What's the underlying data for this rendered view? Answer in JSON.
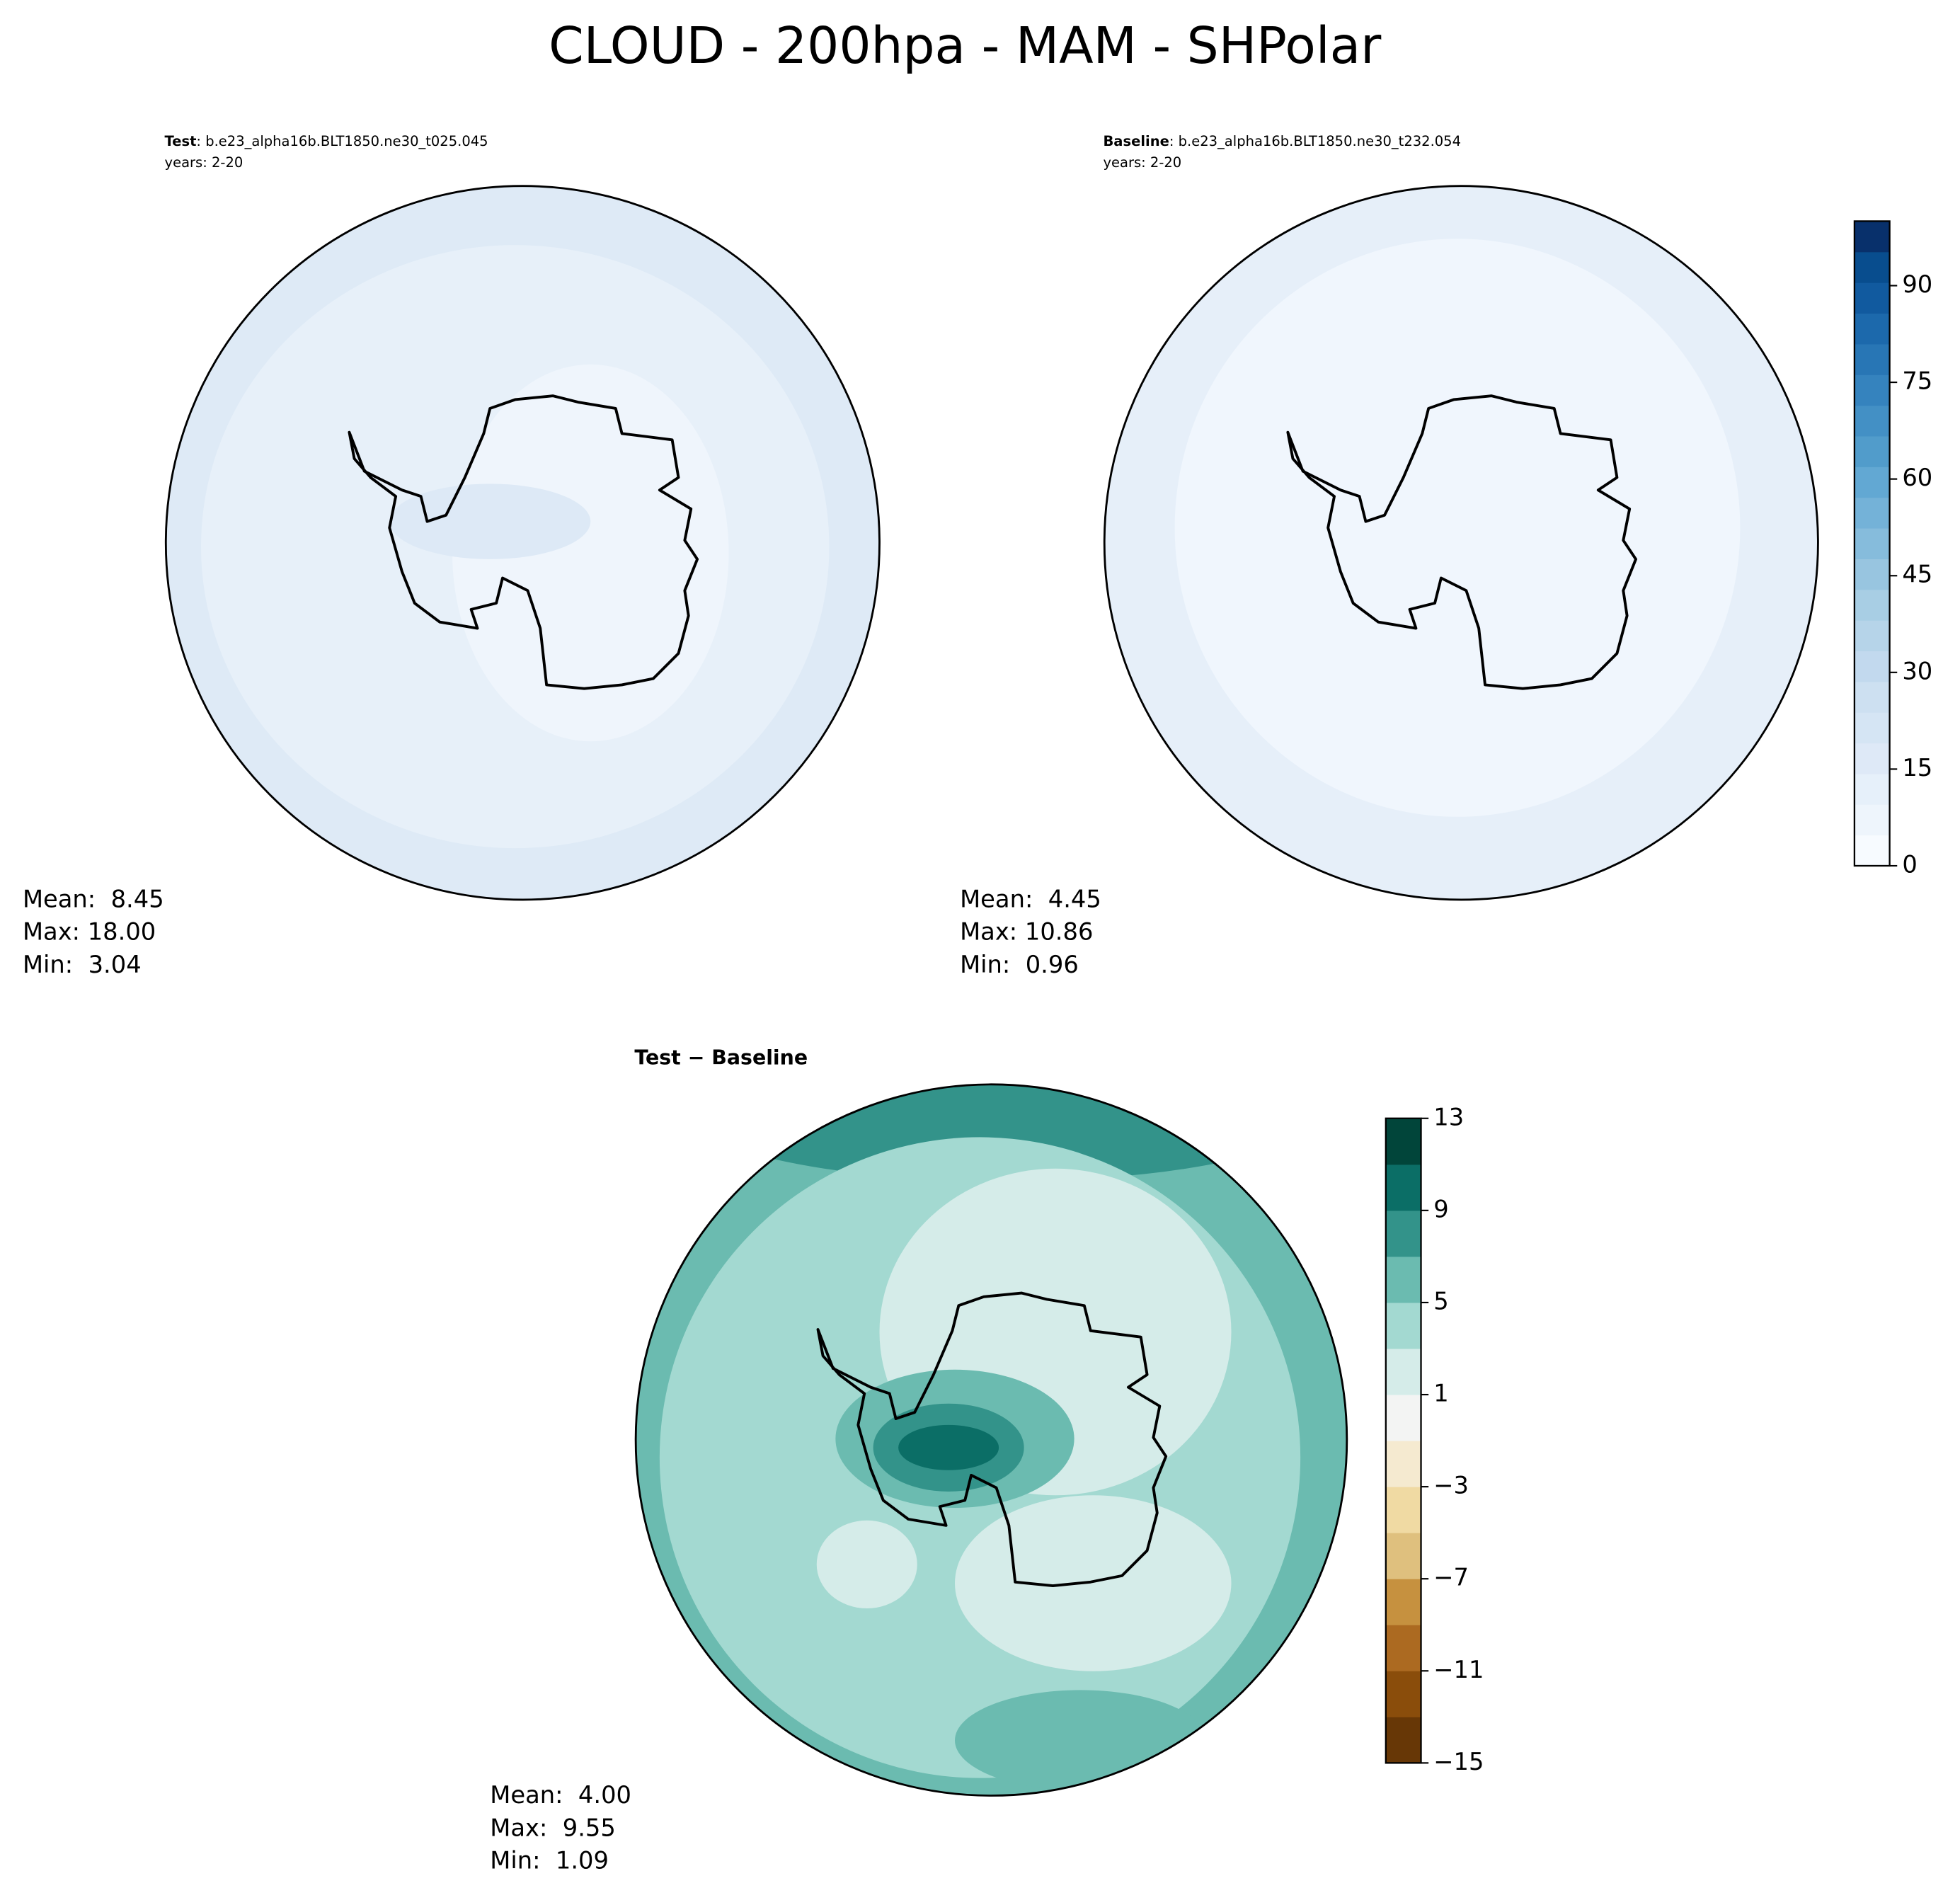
{
  "title": "CLOUD - 200hpa - MAM - SHPolar",
  "panels": [
    {
      "label": "Test",
      "case": ": b.e23_alpha16b.BLT1850.ne30_t025.045",
      "years": "years: 2-20",
      "stats": [
        "Mean:  8.45",
        "Max: 18.00",
        "Min:  3.04"
      ]
    },
    {
      "label": "Baseline",
      "case": ": b.e23_alpha16b.BLT1850.ne30_t232.054",
      "years": "years: 2-20",
      "stats": [
        "Mean:  4.45",
        "Max: 10.86",
        "Min:  0.96"
      ]
    },
    {
      "label": "Test − Baseline",
      "stats": [
        "Mean:  4.00",
        "Max:  9.55",
        "Min:  1.09"
      ]
    }
  ],
  "colorbars": [
    {
      "lim": [
        0,
        100
      ],
      "ticks": [
        0,
        15,
        30,
        45,
        60,
        75,
        90
      ],
      "colors": [
        "#f7fbff",
        "#eef5fc",
        "#e6f0fa",
        "#dee9f7",
        "#d5e5f4",
        "#cde0f1",
        "#c2d9ee",
        "#b6d4e9",
        "#a8cee4",
        "#98c5e0",
        "#86bcdc",
        "#74b2d8",
        "#62a8d3",
        "#519ccb",
        "#4390c5",
        "#3583be",
        "#2876b5",
        "#1c69ac",
        "#115a9f",
        "#084d8e",
        "#08306b"
      ]
    },
    {
      "lim": [
        -15,
        13
      ],
      "ticks": [
        {
          "value": -15,
          "label": "−15"
        },
        {
          "value": -11,
          "label": "−11"
        },
        {
          "value": -7,
          "label": "−7"
        },
        {
          "value": -3,
          "label": "−3"
        },
        1,
        5,
        9,
        13
      ],
      "colors": [
        "#673706",
        "#8a4d0b",
        "#ac6a21",
        "#c6913f",
        "#dfc07e",
        "#f0daa3",
        "#f5ead0",
        "#f3f4f3",
        "#d5ece9",
        "#a3d9d1",
        "#6bbbb0",
        "#33938a",
        "#0b6e66",
        "#01453a"
      ]
    }
  ]
}
